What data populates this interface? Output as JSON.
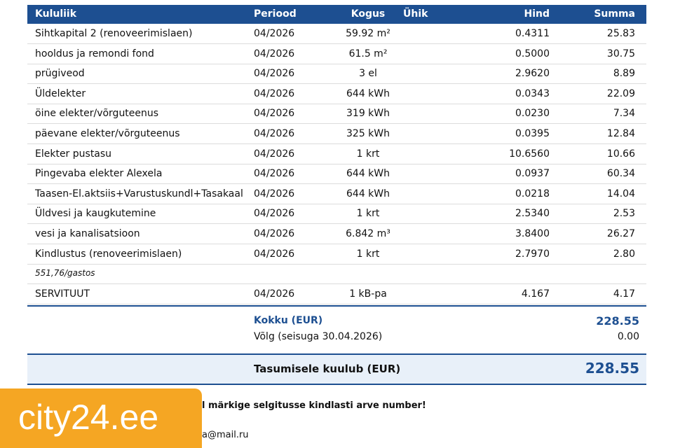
{
  "table": {
    "columns": [
      "Kululiik",
      "Periood",
      "Kogus",
      "Ühik",
      "Hind",
      "Summa"
    ],
    "rows": [
      {
        "item": "Sihtkapital 2 (renoveerimislaen)",
        "period": "04/2026",
        "quantity": "59.92 m²",
        "price": "0.4311",
        "sum": "25.83"
      },
      {
        "item": "hooldus ja remondi fond",
        "period": "04/2026",
        "quantity": "61.5 m²",
        "price": "0.5000",
        "sum": "30.75"
      },
      {
        "item": "prügiveod",
        "period": "04/2026",
        "quantity": "3 el",
        "price": "2.9620",
        "sum": "8.89"
      },
      {
        "item": "Üldelekter",
        "period": "04/2026",
        "quantity": "644 kWh",
        "price": "0.0343",
        "sum": "22.09"
      },
      {
        "item": "öine elekter/võrguteenus",
        "period": "04/2026",
        "quantity": "319 kWh",
        "price": "0.0230",
        "sum": "7.34"
      },
      {
        "item": "päevane elekter/võrguteenus",
        "period": "04/2026",
        "quantity": "325 kWh",
        "price": "0.0395",
        "sum": "12.84"
      },
      {
        "item": "Elekter pustasu",
        "period": "04/2026",
        "quantity": "1 krt",
        "price": "10.6560",
        "sum": "10.66"
      },
      {
        "item": "Pingevaba elekter Alexela",
        "period": "04/2026",
        "quantity": "644 kWh",
        "price": "0.0937",
        "sum": "60.34"
      },
      {
        "item": "Taasen-El.aktsiis+Varustuskundl+Tasakaal",
        "period": "04/2026",
        "quantity": "644 kWh",
        "price": "0.0218",
        "sum": "14.04"
      },
      {
        "item": "Üldvesi ja kaugkutemine",
        "period": "04/2026",
        "quantity": "1 krt",
        "price": "2.5340",
        "sum": "2.53"
      },
      {
        "item": "vesi ja kanalisatsioon",
        "period": "04/2026",
        "quantity": "6.842 m³",
        "price": "3.8400",
        "sum": "26.27"
      },
      {
        "item": "Kindlustus (renoveerimislaen)",
        "period": "04/2026",
        "quantity": "1 krt",
        "price": "2.7970",
        "sum": "2.80"
      },
      {
        "item": "551,76/gastos"
      },
      {
        "item": "SERVITUUT",
        "period": "04/2026",
        "quantity": "1 kB-pa",
        "price": "4.167",
        "sum": "4.17"
      }
    ]
  },
  "summary": {
    "total_label": "Kokku (EUR)",
    "total": "228.55",
    "debt_label": "Võlg (seisuga 30.04.2026)",
    "debt": "0.00",
    "payable_label": "Tasumisele kuulub (EUR)",
    "payable": "228.55"
  },
  "footer": {
    "note": "l märkige selgitusse kindlasti arve number!",
    "email": "a@mail.ru"
  },
  "watermark": "city24.ee"
}
